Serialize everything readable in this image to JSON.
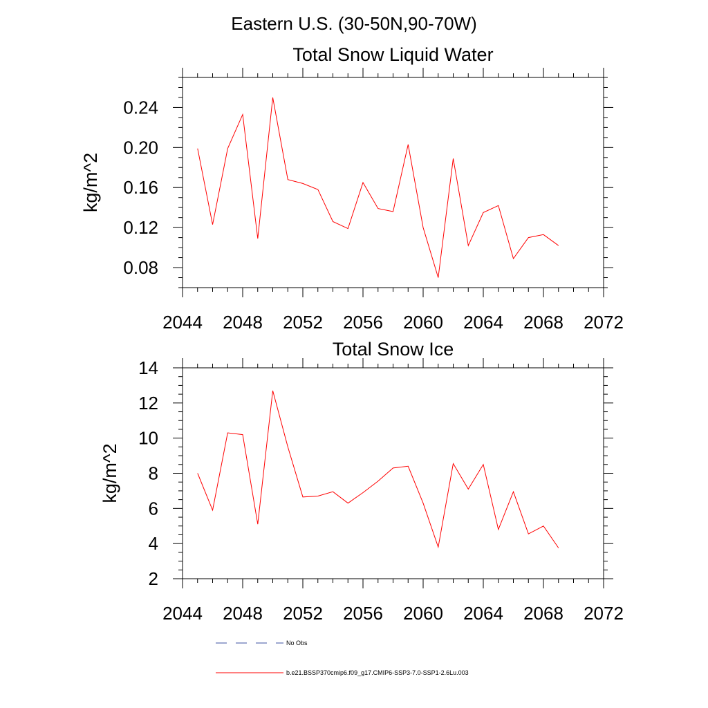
{
  "figure": {
    "title": "Eastern U.S. (30-50N,90-70W)"
  },
  "chart_data": [
    {
      "type": "line",
      "title": "Total Snow Liquid Water",
      "xlabel": "",
      "ylabel": "kg/m^2",
      "xlim": [
        2044,
        2072
      ],
      "ylim": [
        0.06,
        0.27
      ],
      "xticks": [
        2044,
        2048,
        2052,
        2056,
        2060,
        2064,
        2068,
        2072
      ],
      "yticks": [
        0.08,
        0.12,
        0.16,
        0.2,
        0.24
      ],
      "ytick_labels": [
        "0.08",
        "0.12",
        "0.16",
        "0.20",
        "0.24"
      ],
      "grid": false,
      "x": [
        2045,
        2046,
        2047,
        2048,
        2049,
        2050,
        2051,
        2052,
        2053,
        2054,
        2055,
        2056,
        2057,
        2058,
        2059,
        2060,
        2061,
        2062,
        2063,
        2064,
        2065,
        2066,
        2067,
        2068,
        2069
      ],
      "series": [
        {
          "color": "#ff0000",
          "values": [
            0.199,
            0.123,
            0.199,
            0.233,
            0.109,
            0.25,
            0.168,
            0.164,
            0.158,
            0.126,
            0.119,
            0.165,
            0.139,
            0.136,
            0.203,
            0.12,
            0.07,
            0.189,
            0.102,
            0.135,
            0.142,
            0.089,
            0.11,
            0.113,
            0.102
          ]
        }
      ]
    },
    {
      "type": "line",
      "title": "Total Snow Ice",
      "xlabel": "",
      "ylabel": "kg/m^2",
      "xlim": [
        2044,
        2072
      ],
      "ylim": [
        2,
        14
      ],
      "xticks": [
        2044,
        2048,
        2052,
        2056,
        2060,
        2064,
        2068,
        2072
      ],
      "yticks": [
        2,
        4,
        6,
        8,
        10,
        12,
        14
      ],
      "ytick_labels": [
        "2",
        "4",
        "6",
        "8",
        "10",
        "12",
        "14"
      ],
      "grid": false,
      "x": [
        2045,
        2046,
        2047,
        2048,
        2049,
        2050,
        2051,
        2052,
        2053,
        2054,
        2055,
        2056,
        2057,
        2058,
        2059,
        2060,
        2061,
        2062,
        2063,
        2064,
        2065,
        2066,
        2067,
        2068,
        2069
      ],
      "series": [
        {
          "color": "#ff0000",
          "values": [
            8.0,
            5.9,
            10.3,
            10.2,
            5.1,
            12.7,
            9.5,
            6.65,
            6.7,
            6.95,
            6.3,
            6.9,
            7.55,
            8.3,
            8.4,
            6.3,
            3.8,
            8.55,
            7.1,
            8.5,
            4.8,
            6.95,
            4.55,
            5.0,
            3.75
          ]
        }
      ]
    }
  ],
  "legend": {
    "placement": "bottom",
    "entries": [
      {
        "label": "No Obs",
        "color": "#3b4fa0",
        "style": "dashed"
      },
      {
        "label": "b.e21.BSSP370cmip6.f09_g17.CMIP6-SSP3-7.0-SSP1-2.6Lu.003",
        "color": "#ff0000",
        "style": "solid"
      }
    ]
  }
}
